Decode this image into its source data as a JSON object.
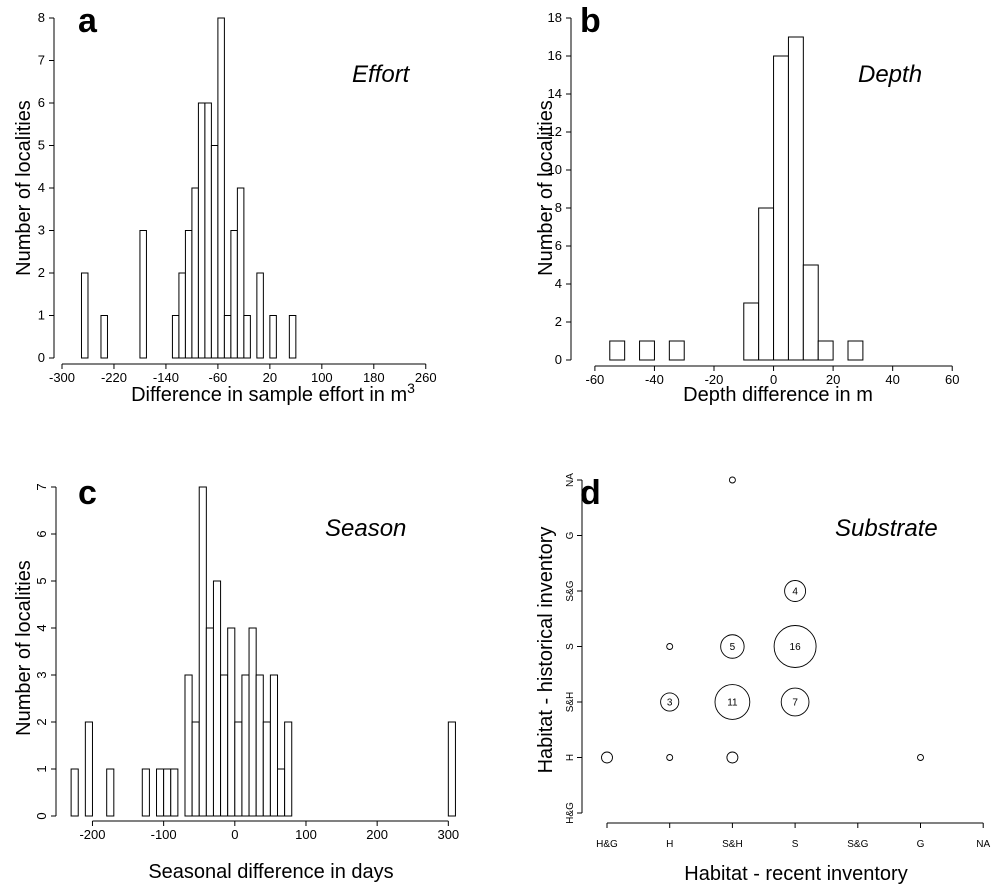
{
  "chart_data": [
    {
      "type": "bar",
      "panel": "a",
      "title": "Effort",
      "xlabel": "Difference in sample effort in m",
      "xlabel_sup": "3",
      "ylabel": "Number of localities",
      "bin_width": 10,
      "bins": [
        {
          "start": -270,
          "value": 2
        },
        {
          "start": -240,
          "value": 1
        },
        {
          "start": -180,
          "value": 3
        },
        {
          "start": -130,
          "value": 1
        },
        {
          "start": -120,
          "value": 2
        },
        {
          "start": -110,
          "value": 3
        },
        {
          "start": -100,
          "value": 4
        },
        {
          "start": -90,
          "value": 6
        },
        {
          "start": -80,
          "value": 6
        },
        {
          "start": -70,
          "value": 5
        },
        {
          "start": -60,
          "value": 8
        },
        {
          "start": -50,
          "value": 1
        },
        {
          "start": -40,
          "value": 3
        },
        {
          "start": -30,
          "value": 4
        },
        {
          "start": -20,
          "value": 1
        },
        {
          "start": 0,
          "value": 2
        },
        {
          "start": 20,
          "value": 1
        },
        {
          "start": 50,
          "value": 1
        }
      ],
      "xlim": [
        -300,
        285
      ],
      "ylim": [
        0,
        8
      ],
      "xticks": [
        -300,
        -220,
        -140,
        -60,
        20,
        100,
        180,
        260
      ],
      "yticks": [
        0,
        1,
        2,
        3,
        4,
        5,
        6,
        7,
        8
      ]
    },
    {
      "type": "bar",
      "panel": "b",
      "title": "Depth",
      "xlabel": "Depth difference in m",
      "ylabel": "Number of localities",
      "bin_width": 5,
      "bins": [
        {
          "start": -55,
          "value": 1
        },
        {
          "start": -45,
          "value": 1
        },
        {
          "start": -35,
          "value": 1
        },
        {
          "start": -10,
          "value": 3
        },
        {
          "start": -5,
          "value": 8
        },
        {
          "start": 0,
          "value": 16
        },
        {
          "start": 5,
          "value": 17
        },
        {
          "start": 10,
          "value": 5
        },
        {
          "start": 15,
          "value": 1
        },
        {
          "start": 25,
          "value": 1
        }
      ],
      "xlim": [
        -65,
        70
      ],
      "ylim": [
        0,
        18
      ],
      "xticks": [
        -60,
        -40,
        -20,
        0,
        20,
        40,
        60
      ],
      "yticks": [
        0,
        2,
        4,
        6,
        8,
        10,
        12,
        14,
        16,
        18
      ]
    },
    {
      "type": "bar",
      "panel": "c",
      "title": "Season",
      "xlabel": "Seasonal difference in days",
      "ylabel": "Number of localities",
      "bin_width": 10,
      "bins": [
        {
          "start": -230,
          "value": 1
        },
        {
          "start": -220,
          "value": 0
        },
        {
          "start": -210,
          "value": 2
        },
        {
          "start": -200,
          "value": 0
        },
        {
          "start": -190,
          "value": 0
        },
        {
          "start": -180,
          "value": 1
        },
        {
          "start": -170,
          "value": 0
        },
        {
          "start": -160,
          "value": 0
        },
        {
          "start": -150,
          "value": 0
        },
        {
          "start": -140,
          "value": 0
        },
        {
          "start": -130,
          "value": 1
        },
        {
          "start": -120,
          "value": 0
        },
        {
          "start": -110,
          "value": 1
        },
        {
          "start": -100,
          "value": 1
        },
        {
          "start": -90,
          "value": 1
        },
        {
          "start": -80,
          "value": 0
        },
        {
          "start": -70,
          "value": 3
        },
        {
          "start": -60,
          "value": 2
        },
        {
          "start": -50,
          "value": 7
        },
        {
          "start": -40,
          "value": 4
        },
        {
          "start": -30,
          "value": 5
        },
        {
          "start": -20,
          "value": 3
        },
        {
          "start": -10,
          "value": 4
        },
        {
          "start": 0,
          "value": 2
        },
        {
          "start": 10,
          "value": 3
        },
        {
          "start": 20,
          "value": 4
        },
        {
          "start": 30,
          "value": 3
        },
        {
          "start": 40,
          "value": 2
        },
        {
          "start": 50,
          "value": 3
        },
        {
          "start": 60,
          "value": 1
        },
        {
          "start": 70,
          "value": 2
        },
        {
          "start": 80,
          "value": 0
        },
        {
          "start": 90,
          "value": 0
        },
        {
          "start": 100,
          "value": 0
        },
        {
          "start": 110,
          "value": 0
        },
        {
          "start": 120,
          "value": 0
        },
        {
          "start": 130,
          "value": 0
        },
        {
          "start": 140,
          "value": 0
        },
        {
          "start": 150,
          "value": 0
        },
        {
          "start": 160,
          "value": 0
        },
        {
          "start": 170,
          "value": 0
        },
        {
          "start": 180,
          "value": 0
        },
        {
          "start": 190,
          "value": 0
        },
        {
          "start": 200,
          "value": 0
        },
        {
          "start": 210,
          "value": 0
        },
        {
          "start": 220,
          "value": 0
        },
        {
          "start": 230,
          "value": 0
        },
        {
          "start": 240,
          "value": 0
        },
        {
          "start": 250,
          "value": 0
        },
        {
          "start": 260,
          "value": 0
        },
        {
          "start": 270,
          "value": 0
        },
        {
          "start": 280,
          "value": 0
        },
        {
          "start": 290,
          "value": 0
        },
        {
          "start": 300,
          "value": 2
        }
      ],
      "xlim": [
        -240,
        315
      ],
      "ylim": [
        0,
        7
      ],
      "xticks": [
        -200,
        -100,
        0,
        100,
        200,
        300
      ],
      "yticks": [
        0,
        1,
        2,
        3,
        4,
        5,
        6,
        7
      ]
    },
    {
      "type": "scatter",
      "panel": "d",
      "title": "Substrate",
      "xlabel": "Habitat - recent inventory",
      "ylabel": "Habitat - historical inventory",
      "categories_x": [
        "H&G",
        "H",
        "S&H",
        "S",
        "S&G",
        "G",
        "NA"
      ],
      "categories_y": [
        "H&G",
        "H",
        "S&H",
        "S",
        "S&G",
        "G",
        "NA"
      ],
      "points": [
        {
          "x": "S&H",
          "y": "NA",
          "count": 1,
          "label": ""
        },
        {
          "x": "S",
          "y": "S&G",
          "count": 4,
          "label": "4"
        },
        {
          "x": "H",
          "y": "S",
          "count": 1,
          "label": ""
        },
        {
          "x": "S&H",
          "y": "S",
          "count": 5,
          "label": "5"
        },
        {
          "x": "S",
          "y": "S",
          "count": 16,
          "label": "16"
        },
        {
          "x": "H",
          "y": "S&H",
          "count": 3,
          "label": "3"
        },
        {
          "x": "S&H",
          "y": "S&H",
          "count": 11,
          "label": "11"
        },
        {
          "x": "S",
          "y": "S&H",
          "count": 7,
          "label": "7"
        },
        {
          "x": "H&G",
          "y": "H",
          "count": 2,
          "label": ""
        },
        {
          "x": "H",
          "y": "H",
          "count": 1,
          "label": ""
        },
        {
          "x": "S&H",
          "y": "H",
          "count": 2,
          "label": ""
        },
        {
          "x": "G",
          "y": "H",
          "count": 1,
          "label": ""
        }
      ]
    }
  ],
  "panels": {
    "a": {
      "letter": "a",
      "title": "Effort"
    },
    "b": {
      "letter": "b",
      "title": "Depth"
    },
    "c": {
      "letter": "c",
      "title": "Season"
    },
    "d": {
      "letter": "d",
      "title": "Substrate"
    }
  }
}
